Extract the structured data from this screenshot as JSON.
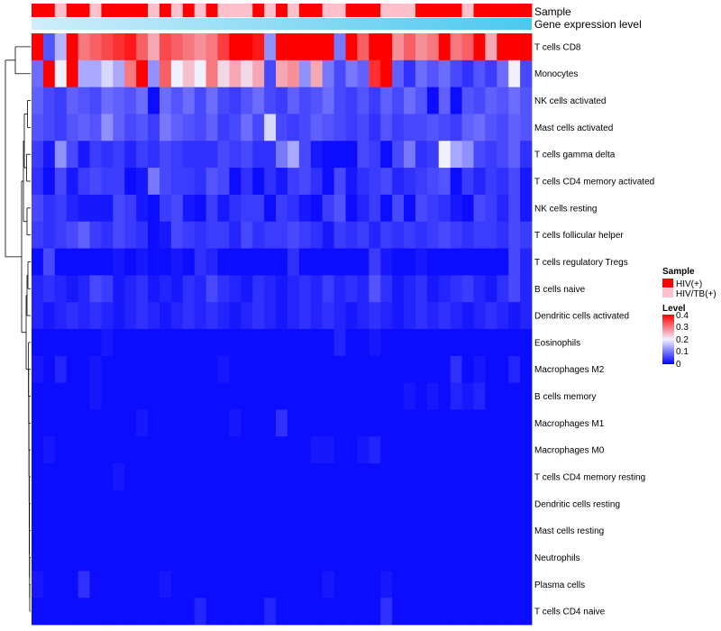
{
  "chart_data": {
    "type": "heatmap",
    "annotation_tracks": [
      {
        "name": "Sample"
      },
      {
        "name": "Gene expression level"
      }
    ],
    "rows": [
      "T cells CD8",
      "Monocytes",
      "NK cells activated",
      "Mast cells activated",
      "T cells gamma delta",
      "T cells CD4 memory activated",
      "NK cells resting",
      "T cells follicular helper",
      "T cells regulatory  Tregs",
      "B cells naive",
      "Dendritic cells activated",
      "Eosinophils",
      "Macrophages M2",
      "B cells memory",
      "Macrophages M1",
      "Macrophages M0",
      "T cells CD4 memory resting",
      "Dendritic cells resting",
      "Mast cells resting",
      "Neutrophils",
      "Plasma cells",
      "T cells CD4 naive"
    ],
    "n_columns": 43,
    "sample_groups": [
      "HIV(+)",
      "HIV(+)",
      "HIV/TB(+)",
      "HIV(+)",
      "HIV(+)",
      "HIV/TB(+)",
      "HIV(+)",
      "HIV(+)",
      "HIV(+)",
      "HIV(+)",
      "HIV/TB(+)",
      "HIV(+)",
      "HIV/TB(+)",
      "HIV(+)",
      "HIV/TB(+)",
      "HIV(+)",
      "HIV/TB(+)",
      "HIV/TB(+)",
      "HIV/TB(+)",
      "HIV(+)",
      "HIV/TB(+)",
      "HIV(+)",
      "HIV/TB(+)",
      "HIV(+)",
      "HIV(+)",
      "HIV/TB(+)",
      "HIV/TB(+)",
      "HIV(+)",
      "HIV(+)",
      "HIV(+)",
      "HIV/TB(+)",
      "HIV/TB(+)",
      "HIV/TB(+)",
      "HIV(+)",
      "HIV(+)",
      "HIV(+)",
      "HIV(+)",
      "HIV/TB(+)",
      "HIV(+)",
      "HIV(+)",
      "HIV(+)",
      "HIV(+)",
      "HIV(+)"
    ],
    "values": [
      [
        0.42,
        0.07,
        0.15,
        0.4,
        0.3,
        0.32,
        0.34,
        0.36,
        0.38,
        0.32,
        0.26,
        0.34,
        0.32,
        0.3,
        0.28,
        0.3,
        0.35,
        0.4,
        0.45,
        0.38,
        0.12,
        0.4,
        0.45,
        0.45,
        0.45,
        0.45,
        0.1,
        0.45,
        0.32,
        0.4,
        0.45,
        0.28,
        0.32,
        0.28,
        0.3,
        0.42,
        0.3,
        0.32,
        0.42,
        0.26,
        0.4,
        0.44,
        0.42
      ],
      [
        0.09,
        0.42,
        0.2,
        0.42,
        0.14,
        0.14,
        0.18,
        0.14,
        0.3,
        0.42,
        0.12,
        0.32,
        0.2,
        0.24,
        0.2,
        0.3,
        0.22,
        0.26,
        0.22,
        0.26,
        0.06,
        0.26,
        0.28,
        0.12,
        0.26,
        0.1,
        0.06,
        0.1,
        0.08,
        0.36,
        0.42,
        0.08,
        0.04,
        0.09,
        0.07,
        0.09,
        0.06,
        0.04,
        0.07,
        0.05,
        0.09,
        0.2,
        0.06
      ],
      [
        0.08,
        0.06,
        0.05,
        0.08,
        0.07,
        0.06,
        0.09,
        0.08,
        0.07,
        0.09,
        0.01,
        0.09,
        0.07,
        0.09,
        0.06,
        0.09,
        0.06,
        0.05,
        0.07,
        0.09,
        0.06,
        0.05,
        0.08,
        0.06,
        0.07,
        0.09,
        0.06,
        0.05,
        0.07,
        0.05,
        0.08,
        0.06,
        0.09,
        0.07,
        0.01,
        0.08,
        0.01,
        0.07,
        0.06,
        0.08,
        0.07,
        0.09,
        0.07
      ],
      [
        0.07,
        0.06,
        0.05,
        0.07,
        0.08,
        0.07,
        0.12,
        0.08,
        0.06,
        0.07,
        0.05,
        0.1,
        0.08,
        0.07,
        0.06,
        0.08,
        0.05,
        0.06,
        0.09,
        0.06,
        0.18,
        0.06,
        0.05,
        0.06,
        0.08,
        0.07,
        0.06,
        0.05,
        0.06,
        0.04,
        0.07,
        0.05,
        0.06,
        0.06,
        0.07,
        0.06,
        0.05,
        0.08,
        0.09,
        0.07,
        0.06,
        0.08,
        0.07
      ],
      [
        0.05,
        0.02,
        0.12,
        0.06,
        0.02,
        0.05,
        0.04,
        0.05,
        0.03,
        0.05,
        0.04,
        0.06,
        0.05,
        0.04,
        0.04,
        0.04,
        0.06,
        0.05,
        0.06,
        0.04,
        0.04,
        0.1,
        0.14,
        0.06,
        0.02,
        0.01,
        0.01,
        0.01,
        0.06,
        0.05,
        0.01,
        0.06,
        0.1,
        0.04,
        0.05,
        0.2,
        0.14,
        0.12,
        0.06,
        0.05,
        0.06,
        0.08,
        0.04
      ],
      [
        0.04,
        0.01,
        0.06,
        0.02,
        0.05,
        0.06,
        0.05,
        0.05,
        0.01,
        0.02,
        0.1,
        0.06,
        0.05,
        0.05,
        0.04,
        0.07,
        0.06,
        0.01,
        0.04,
        0.01,
        0.04,
        0.02,
        0.05,
        0.06,
        0.04,
        0.01,
        0.06,
        0.02,
        0.04,
        0.05,
        0.06,
        0.03,
        0.04,
        0.05,
        0.06,
        0.07,
        0.01,
        0.05,
        0.03,
        0.05,
        0.04,
        0.06,
        0.02
      ],
      [
        0.06,
        0.04,
        0.05,
        0.03,
        0.02,
        0.02,
        0.02,
        0.06,
        0.05,
        0.02,
        0.01,
        0.05,
        0.06,
        0.02,
        0.01,
        0.05,
        0.02,
        0.04,
        0.05,
        0.05,
        0.01,
        0.05,
        0.04,
        0.02,
        0.01,
        0.05,
        0.07,
        0.01,
        0.03,
        0.05,
        0.01,
        0.06,
        0.01,
        0.06,
        0.05,
        0.04,
        0.02,
        0.01,
        0.06,
        0.05,
        0.03,
        0.06,
        0.02
      ],
      [
        0.05,
        0.04,
        0.05,
        0.06,
        0.08,
        0.05,
        0.04,
        0.06,
        0.05,
        0.04,
        0.01,
        0.02,
        0.06,
        0.05,
        0.04,
        0.05,
        0.05,
        0.03,
        0.06,
        0.04,
        0.05,
        0.05,
        0.06,
        0.05,
        0.04,
        0.02,
        0.05,
        0.04,
        0.05,
        0.03,
        0.05,
        0.04,
        0.05,
        0.04,
        0.05,
        0.06,
        0.05,
        0.04,
        0.05,
        0.05,
        0.04,
        0.06,
        0.05
      ],
      [
        0.01,
        0.06,
        0.01,
        0.01,
        0.01,
        0.01,
        0.01,
        0.02,
        0.01,
        0.02,
        0.01,
        0.01,
        0.02,
        0.01,
        0.04,
        0.03,
        0.01,
        0.01,
        0.01,
        0.01,
        0.01,
        0.01,
        0.04,
        0.01,
        0.01,
        0.01,
        0.01,
        0.01,
        0.01,
        0.05,
        0.02,
        0.01,
        0.01,
        0.02,
        0.01,
        0.01,
        0.01,
        0.01,
        0.01,
        0.01,
        0.01,
        0.06,
        0.03
      ],
      [
        0.03,
        0.04,
        0.03,
        0.02,
        0.03,
        0.06,
        0.05,
        0.02,
        0.03,
        0.04,
        0.02,
        0.03,
        0.02,
        0.04,
        0.03,
        0.06,
        0.04,
        0.03,
        0.02,
        0.04,
        0.03,
        0.02,
        0.03,
        0.04,
        0.03,
        0.05,
        0.03,
        0.04,
        0.03,
        0.07,
        0.04,
        0.02,
        0.03,
        0.04,
        0.02,
        0.03,
        0.04,
        0.05,
        0.03,
        0.02,
        0.04,
        0.06,
        0.03
      ],
      [
        0.03,
        0.02,
        0.03,
        0.04,
        0.03,
        0.04,
        0.03,
        0.02,
        0.03,
        0.04,
        0.03,
        0.02,
        0.03,
        0.04,
        0.03,
        0.04,
        0.03,
        0.02,
        0.03,
        0.04,
        0.03,
        0.02,
        0.03,
        0.04,
        0.03,
        0.04,
        0.03,
        0.02,
        0.03,
        0.04,
        0.03,
        0.02,
        0.03,
        0.04,
        0.03,
        0.04,
        0.03,
        0.02,
        0.03,
        0.04,
        0.03,
        0.02,
        0.03
      ],
      [
        0.01,
        0.01,
        0.01,
        0.01,
        0.01,
        0.01,
        0.02,
        0.01,
        0.01,
        0.01,
        0.01,
        0.01,
        0.01,
        0.01,
        0.01,
        0.01,
        0.01,
        0.01,
        0.01,
        0.01,
        0.01,
        0.01,
        0.01,
        0.01,
        0.01,
        0.01,
        0.03,
        0.01,
        0.01,
        0.02,
        0.01,
        0.01,
        0.01,
        0.01,
        0.01,
        0.01,
        0.01,
        0.01,
        0.01,
        0.01,
        0.01,
        0.01,
        0.01
      ],
      [
        0.02,
        0.01,
        0.03,
        0.01,
        0.01,
        0.02,
        0.01,
        0.01,
        0.01,
        0.01,
        0.01,
        0.01,
        0.01,
        0.01,
        0.01,
        0.01,
        0.02,
        0.01,
        0.01,
        0.01,
        0.01,
        0.01,
        0.01,
        0.01,
        0.01,
        0.01,
        0.01,
        0.01,
        0.01,
        0.01,
        0.01,
        0.01,
        0.01,
        0.01,
        0.01,
        0.01,
        0.04,
        0.01,
        0.02,
        0.01,
        0.01,
        0.03,
        0.01
      ],
      [
        0.01,
        0.01,
        0.01,
        0.01,
        0.01,
        0.02,
        0.01,
        0.01,
        0.01,
        0.01,
        0.01,
        0.01,
        0.01,
        0.01,
        0.01,
        0.01,
        0.01,
        0.01,
        0.01,
        0.01,
        0.01,
        0.01,
        0.01,
        0.01,
        0.01,
        0.01,
        0.01,
        0.01,
        0.01,
        0.01,
        0.01,
        0.01,
        0.02,
        0.01,
        0.02,
        0.01,
        0.03,
        0.02,
        0.03,
        0.01,
        0.01,
        0.01,
        0.01
      ],
      [
        0.01,
        0.01,
        0.01,
        0.01,
        0.01,
        0.01,
        0.01,
        0.01,
        0.01,
        0.02,
        0.01,
        0.01,
        0.01,
        0.01,
        0.01,
        0.01,
        0.01,
        0.02,
        0.01,
        0.01,
        0.01,
        0.04,
        0.01,
        0.01,
        0.01,
        0.01,
        0.01,
        0.01,
        0.01,
        0.01,
        0.01,
        0.01,
        0.01,
        0.01,
        0.01,
        0.01,
        0.01,
        0.01,
        0.01,
        0.01,
        0.01,
        0.01,
        0.01
      ],
      [
        0.01,
        0.02,
        0.01,
        0.01,
        0.01,
        0.01,
        0.01,
        0.01,
        0.01,
        0.01,
        0.01,
        0.01,
        0.01,
        0.01,
        0.01,
        0.01,
        0.01,
        0.01,
        0.01,
        0.01,
        0.01,
        0.01,
        0.01,
        0.01,
        0.02,
        0.02,
        0.01,
        0.01,
        0.02,
        0.03,
        0.01,
        0.01,
        0.01,
        0.01,
        0.01,
        0.01,
        0.01,
        0.01,
        0.01,
        0.01,
        0.01,
        0.01,
        0.01
      ],
      [
        0.01,
        0.01,
        0.01,
        0.01,
        0.01,
        0.01,
        0.01,
        0.02,
        0.01,
        0.01,
        0.01,
        0.01,
        0.01,
        0.01,
        0.01,
        0.01,
        0.01,
        0.01,
        0.01,
        0.01,
        0.01,
        0.01,
        0.01,
        0.01,
        0.01,
        0.01,
        0.01,
        0.01,
        0.01,
        0.01,
        0.01,
        0.01,
        0.01,
        0.01,
        0.01,
        0.01,
        0.01,
        0.01,
        0.01,
        0.01,
        0.01,
        0.01,
        0.01
      ],
      [
        0.01,
        0.01,
        0.01,
        0.01,
        0.01,
        0.01,
        0.01,
        0.01,
        0.01,
        0.01,
        0.01,
        0.01,
        0.01,
        0.01,
        0.01,
        0.01,
        0.01,
        0.01,
        0.01,
        0.01,
        0.01,
        0.01,
        0.01,
        0.01,
        0.01,
        0.01,
        0.01,
        0.01,
        0.01,
        0.01,
        0.01,
        0.01,
        0.01,
        0.01,
        0.01,
        0.01,
        0.01,
        0.01,
        0.01,
        0.01,
        0.01,
        0.01,
        0.01
      ],
      [
        0.01,
        0.01,
        0.01,
        0.01,
        0.01,
        0.01,
        0.01,
        0.01,
        0.01,
        0.01,
        0.01,
        0.01,
        0.01,
        0.01,
        0.01,
        0.01,
        0.01,
        0.01,
        0.01,
        0.01,
        0.01,
        0.01,
        0.01,
        0.01,
        0.01,
        0.01,
        0.01,
        0.01,
        0.01,
        0.01,
        0.01,
        0.01,
        0.01,
        0.01,
        0.01,
        0.01,
        0.01,
        0.01,
        0.01,
        0.01,
        0.01,
        0.01,
        0.01
      ],
      [
        0.01,
        0.01,
        0.01,
        0.01,
        0.01,
        0.01,
        0.01,
        0.01,
        0.01,
        0.01,
        0.01,
        0.01,
        0.01,
        0.01,
        0.01,
        0.01,
        0.01,
        0.01,
        0.01,
        0.01,
        0.01,
        0.01,
        0.01,
        0.01,
        0.01,
        0.01,
        0.01,
        0.01,
        0.01,
        0.01,
        0.01,
        0.01,
        0.01,
        0.01,
        0.01,
        0.01,
        0.01,
        0.01,
        0.01,
        0.01,
        0.01,
        0.01,
        0.01
      ],
      [
        0.02,
        0.01,
        0.01,
        0.01,
        0.04,
        0.01,
        0.01,
        0.01,
        0.01,
        0.01,
        0.01,
        0.02,
        0.01,
        0.01,
        0.01,
        0.01,
        0.01,
        0.01,
        0.01,
        0.01,
        0.01,
        0.01,
        0.01,
        0.01,
        0.01,
        0.02,
        0.01,
        0.01,
        0.01,
        0.01,
        0.02,
        0.01,
        0.01,
        0.01,
        0.01,
        0.01,
        0.01,
        0.01,
        0.01,
        0.01,
        0.01,
        0.01,
        0.01
      ],
      [
        0.01,
        0.01,
        0.01,
        0.01,
        0.01,
        0.01,
        0.01,
        0.01,
        0.01,
        0.01,
        0.01,
        0.01,
        0.01,
        0.01,
        0.03,
        0.01,
        0.01,
        0.01,
        0.01,
        0.01,
        0.03,
        0.01,
        0.01,
        0.01,
        0.01,
        0.01,
        0.01,
        0.01,
        0.01,
        0.01,
        0.04,
        0.01,
        0.01,
        0.01,
        0.01,
        0.01,
        0.01,
        0.01,
        0.01,
        0.01,
        0.01,
        0.01,
        0.01
      ]
    ],
    "color_scale": {
      "min": 0,
      "max": 0.4,
      "stops": [
        {
          "value": 0,
          "color": "#0000ff"
        },
        {
          "value": 0.2,
          "color": "#f0f0ff"
        },
        {
          "value": 0.4,
          "color": "#ff0000"
        }
      ]
    },
    "legend": {
      "sample_title": "Sample",
      "sample_entries": [
        {
          "label": "HIV(+)",
          "color": "#ff0000"
        },
        {
          "label": "HIV/TB(+)",
          "color": "#ffc0cb"
        }
      ],
      "level_title": "Level",
      "level_ticks": [
        "0.4",
        "0.3",
        "0.2",
        "0.1",
        "0"
      ]
    },
    "expression_bar_colors": [
      "#cfeefa",
      "#4cc8ee"
    ]
  }
}
